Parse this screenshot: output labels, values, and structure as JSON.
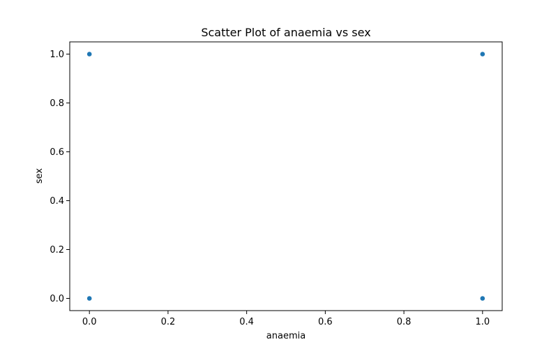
{
  "chart_data": {
    "type": "scatter",
    "title": "Scatter Plot of anaemia vs sex",
    "xlabel": "anaemia",
    "ylabel": "sex",
    "xlim": [
      -0.05,
      1.05
    ],
    "ylim": [
      -0.05,
      1.05
    ],
    "xticks": [
      0.0,
      0.2,
      0.4,
      0.6,
      0.8,
      1.0
    ],
    "xtick_labels": [
      "0.0",
      "0.2",
      "0.4",
      "0.6",
      "0.8",
      "1.0"
    ],
    "yticks": [
      0.0,
      0.2,
      0.4,
      0.6,
      0.8,
      1.0
    ],
    "ytick_labels": [
      "0.0",
      "0.2",
      "0.4",
      "0.6",
      "0.8",
      "1.0"
    ],
    "grid": false,
    "legend": null,
    "series": [
      {
        "name": "anaemia vs sex",
        "color": "#1f77b4",
        "points": [
          {
            "x": 0,
            "y": 1
          },
          {
            "x": 1,
            "y": 1
          },
          {
            "x": 0,
            "y": 0
          },
          {
            "x": 1,
            "y": 0
          }
        ]
      }
    ]
  }
}
